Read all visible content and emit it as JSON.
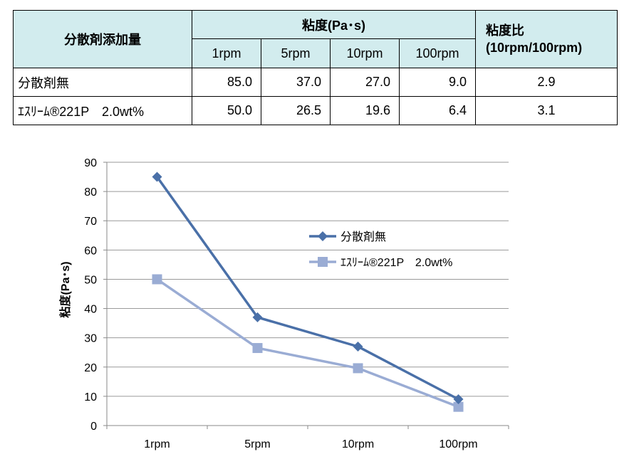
{
  "table": {
    "header_additive": "分散剤添加量",
    "header_viscosity": "粘度(Pa･s)",
    "header_ratio_line1": "粘度比",
    "header_ratio_line2": "(10rpm/100rpm)",
    "speeds": [
      "1rpm",
      "5rpm",
      "10rpm",
      "100rpm"
    ],
    "rows": [
      {
        "label": "分散剤無",
        "values": [
          "85.0",
          "37.0",
          "27.0",
          "9.0"
        ],
        "ratio": "2.9"
      },
      {
        "label": "ｴｽﾘｰﾑ®221P　2.0wt%",
        "values": [
          "50.0",
          "26.5",
          "19.6",
          "6.4"
        ],
        "ratio": "3.1"
      }
    ]
  },
  "chart_data": {
    "type": "line",
    "categories": [
      "1rpm",
      "5rpm",
      "10rpm",
      "100rpm"
    ],
    "ylabel": "粘度(Pa･s)",
    "ylim": [
      0,
      90
    ],
    "yticks": [
      0,
      10,
      20,
      30,
      40,
      50,
      60,
      70,
      80,
      90
    ],
    "grid": true,
    "legend_position": "upper-right inside plot",
    "series": [
      {
        "name": "分散剤無",
        "values": [
          85.0,
          37.0,
          27.0,
          9.0
        ],
        "color": "#4a70a8",
        "marker": "diamond"
      },
      {
        "name": "ｴｽﾘｰﾑ®221P　2.0wt%",
        "values": [
          50.0,
          26.5,
          19.6,
          6.4
        ],
        "color": "#9aacd4",
        "marker": "square"
      }
    ]
  }
}
